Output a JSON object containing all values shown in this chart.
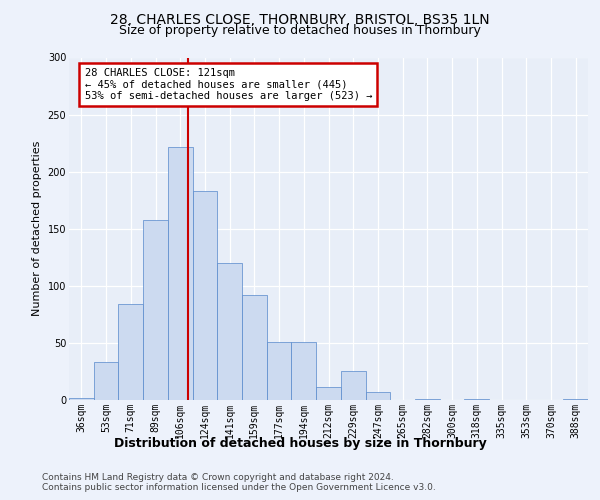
{
  "title1": "28, CHARLES CLOSE, THORNBURY, BRISTOL, BS35 1LN",
  "title2": "Size of property relative to detached houses in Thornbury",
  "xlabel": "Distribution of detached houses by size in Thornbury",
  "ylabel": "Number of detached properties",
  "bin_labels": [
    "36sqm",
    "53sqm",
    "71sqm",
    "89sqm",
    "106sqm",
    "124sqm",
    "141sqm",
    "159sqm",
    "177sqm",
    "194sqm",
    "212sqm",
    "229sqm",
    "247sqm",
    "265sqm",
    "282sqm",
    "300sqm",
    "318sqm",
    "335sqm",
    "353sqm",
    "370sqm",
    "388sqm"
  ],
  "bar_values": [
    2,
    33,
    84,
    158,
    222,
    183,
    120,
    92,
    51,
    51,
    11,
    25,
    7,
    0,
    1,
    0,
    1,
    0,
    0,
    0,
    1
  ],
  "bar_color": "#ccdaf0",
  "bar_edge_color": "#5588cc",
  "annotation_text": "28 CHARLES CLOSE: 121sqm\n← 45% of detached houses are smaller (445)\n53% of semi-detached houses are larger (523) →",
  "annotation_box_color": "#ffffff",
  "annotation_box_edge": "#cc0000",
  "vline_color": "#cc0000",
  "ylim": [
    0,
    300
  ],
  "yticks": [
    0,
    50,
    100,
    150,
    200,
    250,
    300
  ],
  "footer1": "Contains HM Land Registry data © Crown copyright and database right 2024.",
  "footer2": "Contains public sector information licensed under the Open Government Licence v3.0.",
  "bg_color": "#edf2fb",
  "plot_bg_color": "#e8eef8",
  "title1_fontsize": 10,
  "title2_fontsize": 9,
  "ylabel_fontsize": 8,
  "xlabel_fontsize": 9,
  "tick_fontsize": 7,
  "footer_fontsize": 6.5
}
